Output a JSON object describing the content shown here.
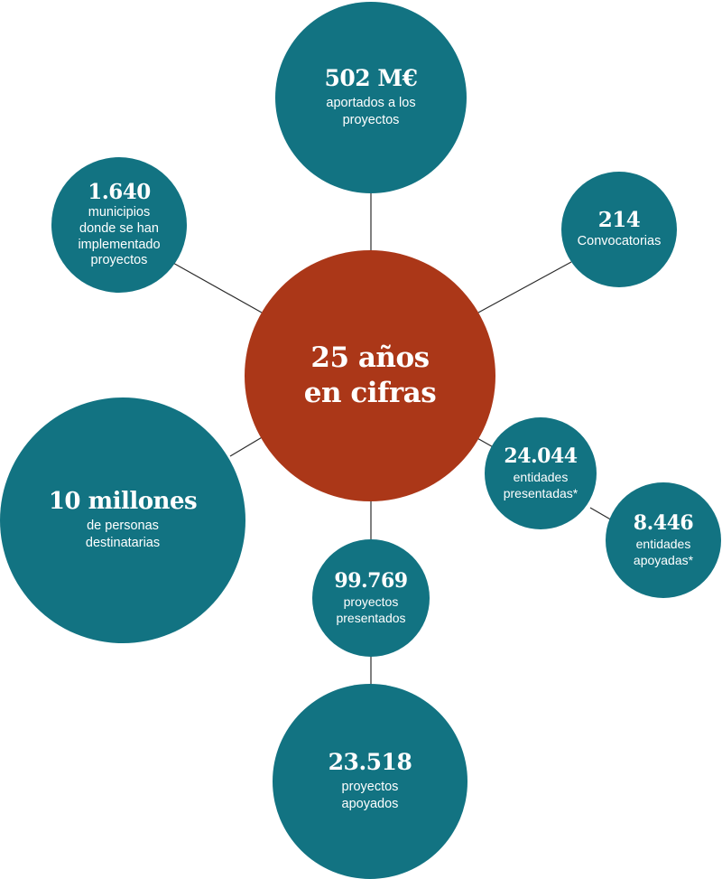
{
  "center": {
    "line1": "25 años",
    "line2": "en cifras",
    "color": "#ab3718"
  },
  "bubble_color": "#127382",
  "stats": {
    "aportados": {
      "value": "502 M€",
      "label_lines": [
        "aportados a los",
        "proyectos"
      ]
    },
    "convocatorias": {
      "value": "214",
      "label_lines": [
        "Convocatorias"
      ]
    },
    "municipios": {
      "value": "1.640",
      "label_lines": [
        "municipios",
        "donde se han",
        "implementado",
        "proyectos"
      ]
    },
    "personas": {
      "value": "10 millones",
      "label_lines": [
        "de personas",
        "destinatarias"
      ]
    },
    "entidades_presentadas": {
      "value": "24.044",
      "label_lines": [
        "entidades",
        "presentadas*"
      ]
    },
    "entidades_apoyadas": {
      "value": "8.446",
      "label_lines": [
        "entidades",
        "apoyadas*"
      ]
    },
    "proyectos_presentados": {
      "value": "99.769",
      "label_lines": [
        "proyectos",
        "presentados"
      ]
    },
    "proyectos_apoyados": {
      "value": "23.518",
      "label_lines": [
        "proyectos",
        "apoyados"
      ]
    }
  }
}
